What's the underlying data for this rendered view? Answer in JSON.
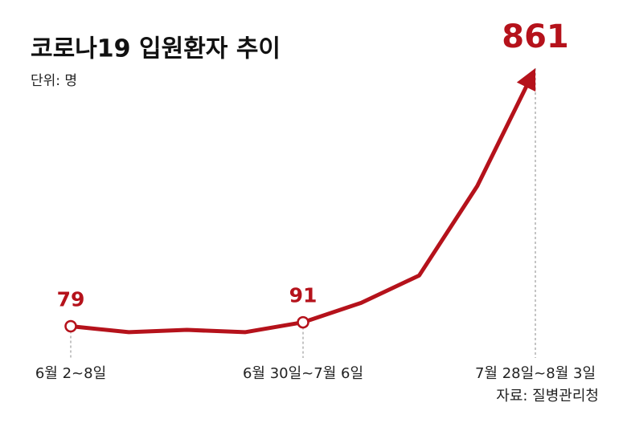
{
  "chart_data": {
    "type": "line",
    "title": "코로나19 입원환자 추이",
    "subtitle": "단위: 명",
    "source": "자료: 질병관리청",
    "categories": [
      "6월 2~8일",
      null,
      null,
      null,
      "6월 30일~7월 6일",
      null,
      null,
      null,
      "7월 28일~8월 3일"
    ],
    "values": [
      79,
      61,
      68,
      61,
      91,
      150,
      233,
      504,
      861
    ],
    "color": "#b5121b"
  }
}
